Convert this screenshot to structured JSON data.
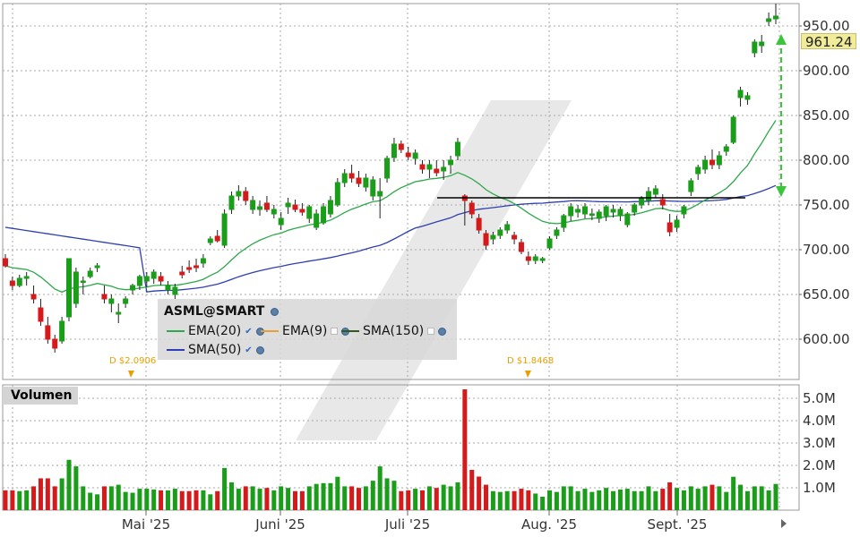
{
  "legend": {
    "title": "ASML@SMART",
    "ema20": "EMA(20)",
    "ema9": "EMA(9)",
    "sma150": "SMA(150)",
    "sma50": "SMA(50)"
  },
  "volume_label": "Volumen",
  "last_price": "961.24",
  "dividends": [
    "D $2.0906",
    "D $1.8468"
  ],
  "colors": {
    "up": "#1a9e1a",
    "down": "#d41a1a",
    "ema20": "#2ea84a",
    "sma50": "#2e3fb0",
    "resistance": "#000000",
    "arrow": "#3cc43c"
  },
  "chart_data": [
    {
      "type": "candlestick",
      "title": "ASML@SMART",
      "x_labels": [
        "Mai '25",
        "Juni '25",
        "Juli '25",
        "Aug. '25",
        "Sept. '25"
      ],
      "y_ticks": [
        "600.00",
        "650.00",
        "700.00",
        "750.00",
        "800.00",
        "850.00",
        "900.00",
        "950.00"
      ],
      "ylim": [
        555,
        975
      ],
      "ohlc": [
        [
          690,
          695,
          680,
          682
        ],
        [
          665,
          670,
          655,
          660
        ],
        [
          660,
          672,
          658,
          668
        ],
        [
          668,
          675,
          660,
          670
        ],
        [
          650,
          660,
          640,
          645
        ],
        [
          635,
          645,
          615,
          620
        ],
        [
          615,
          625,
          595,
          600
        ],
        [
          600,
          605,
          585,
          590
        ],
        [
          598,
          625,
          595,
          620
        ],
        [
          625,
          690,
          620,
          690
        ],
        [
          640,
          680,
          635,
          675
        ],
        [
          665,
          670,
          650,
          665
        ],
        [
          670,
          680,
          668,
          676
        ],
        [
          680,
          685,
          675,
          682
        ],
        [
          650,
          660,
          640,
          645
        ],
        [
          640,
          650,
          630,
          645
        ],
        [
          628,
          640,
          618,
          630
        ],
        [
          640,
          648,
          635,
          645
        ],
        [
          655,
          662,
          650,
          660
        ],
        [
          660,
          672,
          655,
          670
        ],
        [
          665,
          675,
          658,
          670
        ],
        [
          668,
          678,
          662,
          675
        ],
        [
          670,
          675,
          660,
          665
        ],
        [
          655,
          665,
          650,
          660
        ],
        [
          650,
          662,
          645,
          658
        ],
        [
          675,
          682,
          668,
          672
        ],
        [
          680,
          688,
          674,
          678
        ],
        [
          682,
          690,
          675,
          680
        ],
        [
          685,
          695,
          680,
          690
        ],
        [
          708,
          715,
          705,
          712
        ],
        [
          715,
          722,
          708,
          710
        ],
        [
          705,
          745,
          702,
          740
        ],
        [
          745,
          765,
          740,
          760
        ],
        [
          760,
          772,
          755,
          765
        ],
        [
          765,
          770,
          750,
          755
        ],
        [
          745,
          760,
          740,
          755
        ],
        [
          745,
          755,
          738,
          748
        ],
        [
          752,
          760,
          742,
          745
        ],
        [
          740,
          750,
          735,
          745
        ],
        [
          728,
          742,
          722,
          735
        ],
        [
          748,
          758,
          740,
          752
        ],
        [
          750,
          756,
          742,
          745
        ],
        [
          745,
          752,
          738,
          742
        ],
        [
          735,
          750,
          730,
          748
        ],
        [
          725,
          745,
          722,
          740
        ],
        [
          730,
          752,
          728,
          748
        ],
        [
          740,
          760,
          736,
          755
        ],
        [
          750,
          780,
          748,
          775
        ],
        [
          775,
          790,
          770,
          785
        ],
        [
          785,
          795,
          775,
          780
        ],
        [
          780,
          788,
          770,
          774
        ],
        [
          770,
          785,
          765,
          780
        ],
        [
          760,
          782,
          755,
          778
        ],
        [
          760,
          780,
          735,
          765
        ],
        [
          780,
          805,
          775,
          802
        ],
        [
          803,
          825,
          798,
          818
        ],
        [
          818,
          822,
          808,
          812
        ],
        [
          808,
          815,
          800,
          804
        ],
        [
          802,
          812,
          795,
          808
        ],
        [
          795,
          800,
          785,
          790
        ],
        [
          790,
          800,
          780,
          795
        ],
        [
          790,
          800,
          782,
          786
        ],
        [
          788,
          800,
          778,
          792
        ],
        [
          795,
          805,
          785,
          800
        ],
        [
          805,
          825,
          800,
          820
        ],
        [
          760,
          762,
          727,
          755
        ],
        [
          752,
          755,
          735,
          740
        ],
        [
          735,
          740,
          718,
          722
        ],
        [
          718,
          722,
          700,
          705
        ],
        [
          712,
          720,
          706,
          716
        ],
        [
          716,
          725,
          712,
          722
        ],
        [
          722,
          732,
          718,
          728
        ],
        [
          716,
          720,
          706,
          712
        ],
        [
          708,
          712,
          695,
          698
        ],
        [
          692,
          698,
          683,
          688
        ],
        [
          688,
          695,
          684,
          692
        ],
        [
          688,
          692,
          685,
          690
        ],
        [
          702,
          715,
          700,
          712
        ],
        [
          716,
          725,
          712,
          722
        ],
        [
          725,
          740,
          720,
          738
        ],
        [
          738,
          752,
          732,
          748
        ],
        [
          742,
          750,
          736,
          745
        ],
        [
          740,
          752,
          735,
          748
        ],
        [
          740,
          746,
          733,
          740
        ],
        [
          735,
          745,
          730,
          742
        ],
        [
          738,
          750,
          732,
          748
        ],
        [
          742,
          750,
          736,
          745
        ],
        [
          738,
          748,
          732,
          745
        ],
        [
          728,
          742,
          725,
          740
        ],
        [
          742,
          752,
          738,
          750
        ],
        [
          750,
          760,
          746,
          758
        ],
        [
          755,
          770,
          750,
          765
        ],
        [
          762,
          772,
          758,
          768
        ],
        [
          756,
          762,
          745,
          750
        ],
        [
          730,
          740,
          715,
          720
        ],
        [
          725,
          738,
          720,
          733
        ],
        [
          740,
          750,
          735,
          748
        ],
        [
          765,
          780,
          760,
          777
        ],
        [
          785,
          795,
          778,
          792
        ],
        [
          790,
          805,
          785,
          800
        ],
        [
          800,
          812,
          790,
          795
        ],
        [
          795,
          810,
          790,
          805
        ],
        [
          810,
          818,
          805,
          815
        ],
        [
          820,
          850,
          818,
          848
        ],
        [
          870,
          882,
          860,
          878
        ],
        [
          868,
          876,
          862,
          872
        ],
        [
          920,
          935,
          915,
          932
        ],
        [
          928,
          940,
          920,
          932
        ],
        [
          955,
          965,
          950,
          958
        ],
        [
          958,
          975,
          952,
          961
        ]
      ],
      "volume_ticks": [
        "1.0M",
        "2.0M",
        "3.0M",
        "4.0M",
        "5.0M"
      ],
      "volume_ylim": [
        0,
        5.6
      ]
    }
  ]
}
